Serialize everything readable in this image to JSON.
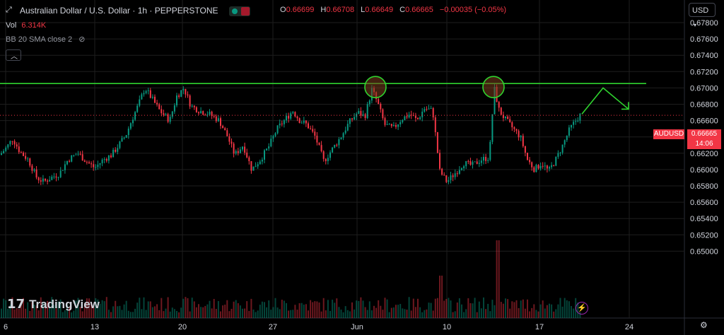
{
  "header": {
    "symbol_title": "Australian Dollar / U.S. Dollar · 1h · PEPPERSTONE",
    "open_label": "O",
    "open": "0.66699",
    "high_label": "H",
    "high": "0.66708",
    "low_label": "L",
    "low": "0.66649",
    "close_label": "C",
    "close": "0.66665",
    "change": "−0.00035 (−0.05%)",
    "vol_label": "Vol",
    "vol_value": "6.314K",
    "indicator": "BB 20 SMA close 2",
    "currency": "USD"
  },
  "badges": {
    "pair": "AUDUSD",
    "price": "0.66665",
    "countdown": "14:06"
  },
  "branding": {
    "name": "TradingView"
  },
  "colors": {
    "up": "#089981",
    "down": "#f23645",
    "line": "#2fd42f",
    "bg": "#000000",
    "grid": "#1e1e1e"
  },
  "icons": [
    "expand-icon",
    "eye-off-icon",
    "bolt-icon",
    "gear-icon",
    "chevron-up-icon"
  ],
  "chart_data": {
    "type": "candlestick",
    "y_ticks": [
      "0.67800",
      "0.67600",
      "0.67400",
      "0.67200",
      "0.67000",
      "0.66800",
      "0.66600",
      "0.66400",
      "0.66200",
      "0.66000",
      "0.65800",
      "0.65600",
      "0.65400",
      "0.65200",
      "0.65000"
    ],
    "x_ticks": [
      "6",
      "13",
      "20",
      "27",
      "Jun",
      "10",
      "17",
      "24"
    ],
    "ylim": [
      0.6495,
      0.6787
    ],
    "resistance_level": 0.67054,
    "current_price": 0.66665,
    "circles": [
      0.67054,
      0.67054
    ],
    "price_path": [
      [
        0,
        0.6618
      ],
      [
        10,
        0.6628
      ],
      [
        18,
        0.6638
      ],
      [
        28,
        0.6622
      ],
      [
        40,
        0.6612
      ],
      [
        52,
        0.659
      ],
      [
        62,
        0.6585
      ],
      [
        72,
        0.659
      ],
      [
        84,
        0.6595
      ],
      [
        96,
        0.6612
      ],
      [
        110,
        0.662
      ],
      [
        122,
        0.661
      ],
      [
        134,
        0.6602
      ],
      [
        146,
        0.6612
      ],
      [
        158,
        0.6618
      ],
      [
        168,
        0.663
      ],
      [
        178,
        0.6642
      ],
      [
        186,
        0.666
      ],
      [
        196,
        0.668
      ],
      [
        205,
        0.67
      ],
      [
        214,
        0.6688
      ],
      [
        226,
        0.6672
      ],
      [
        240,
        0.666
      ],
      [
        250,
        0.669
      ],
      [
        260,
        0.67
      ],
      [
        270,
        0.6678
      ],
      [
        282,
        0.6672
      ],
      [
        296,
        0.6668
      ],
      [
        310,
        0.666
      ],
      [
        322,
        0.664
      ],
      [
        332,
        0.6618
      ],
      [
        344,
        0.663
      ],
      [
        356,
        0.66
      ],
      [
        368,
        0.6612
      ],
      [
        380,
        0.6628
      ],
      [
        392,
        0.665
      ],
      [
        404,
        0.6662
      ],
      [
        414,
        0.6672
      ],
      [
        424,
        0.666
      ],
      [
        434,
        0.6655
      ],
      [
        446,
        0.664
      ],
      [
        458,
        0.661
      ],
      [
        470,
        0.6625
      ],
      [
        482,
        0.664
      ],
      [
        494,
        0.6658
      ],
      [
        506,
        0.667
      ],
      [
        516,
        0.6665
      ],
      [
        526,
        0.6698
      ],
      [
        534,
        0.6682
      ],
      [
        544,
        0.6655
      ],
      [
        556,
        0.665
      ],
      [
        568,
        0.6662
      ],
      [
        580,
        0.6668
      ],
      [
        590,
        0.666
      ],
      [
        600,
        0.6675
      ],
      [
        612,
        0.6672
      ],
      [
        622,
        0.6598
      ],
      [
        632,
        0.6585
      ],
      [
        644,
        0.6596
      ],
      [
        656,
        0.6608
      ],
      [
        668,
        0.6605
      ],
      [
        680,
        0.6612
      ],
      [
        692,
        0.6615
      ],
      [
        699,
        0.67
      ],
      [
        706,
        0.6672
      ],
      [
        716,
        0.666
      ],
      [
        726,
        0.665
      ],
      [
        736,
        0.664
      ],
      [
        746,
        0.6612
      ],
      [
        756,
        0.66
      ],
      [
        766,
        0.6608
      ],
      [
        776,
        0.6598
      ],
      [
        786,
        0.6612
      ],
      [
        796,
        0.663
      ],
      [
        806,
        0.665
      ],
      [
        816,
        0.6662
      ],
      [
        822,
        0.6668
      ]
    ],
    "forecast": [
      [
        822,
        0.6668
      ],
      [
        852,
        0.67
      ],
      [
        888,
        0.6674
      ]
    ]
  }
}
